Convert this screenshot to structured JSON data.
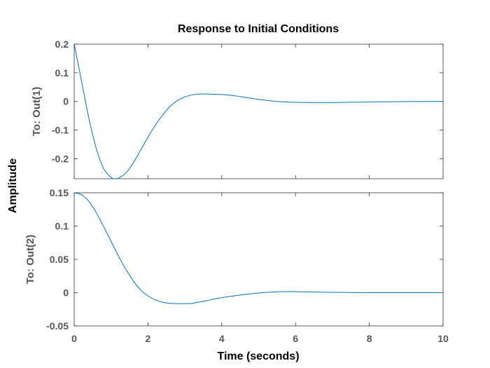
{
  "chart_data": {
    "type": "line",
    "title": "Response to Initial Conditions",
    "xlabel": "Time (seconds)",
    "ylabel": "Amplitude",
    "grid": false,
    "line_color": "#0072BD",
    "xlim": [
      0,
      10
    ],
    "xticks": [
      0,
      2,
      4,
      6,
      8,
      10
    ],
    "xtick_labels": [
      "0",
      "2",
      "4",
      "6",
      "8",
      "10"
    ],
    "subplots": [
      {
        "ylabel": "To: Out(1)",
        "ylim": [
          -0.27,
          0.2
        ],
        "yticks": [
          0.2,
          0.1,
          0,
          -0.1,
          -0.2
        ],
        "ytick_labels": [
          "0.2",
          "0.1",
          "0",
          "-0.1",
          "-0.2"
        ],
        "series": [
          {
            "x": [
              0,
              0.2,
              0.4,
              0.6,
              0.8,
              1.0,
              1.1,
              1.2,
              1.4,
              1.6,
              1.8,
              2.0,
              2.2,
              2.4,
              2.6,
              2.8,
              3.0,
              3.2,
              3.4,
              3.6,
              3.8,
              4.0,
              4.2,
              4.4,
              4.6,
              4.8,
              5.0,
              5.5,
              6.0,
              6.5,
              7.0,
              7.5,
              8.0,
              8.5,
              9.0,
              9.5,
              10.0
            ],
            "y": [
              0.2,
              0.07,
              -0.06,
              -0.165,
              -0.235,
              -0.265,
              -0.27,
              -0.268,
              -0.25,
              -0.215,
              -0.17,
              -0.125,
              -0.083,
              -0.047,
              -0.017,
              0.003,
              0.016,
              0.023,
              0.026,
              0.026,
              0.025,
              0.024,
              0.022,
              0.019,
              0.015,
              0.011,
              0.007,
              0.0,
              -0.003,
              -0.004,
              -0.004,
              -0.003,
              -0.002,
              -0.001,
              -0.0005,
              0.0,
              0.0
            ]
          }
        ]
      },
      {
        "ylabel": "To: Out(2)",
        "ylim": [
          -0.05,
          0.15
        ],
        "yticks": [
          0.15,
          0.1,
          0.05,
          0,
          -0.05
        ],
        "ytick_labels": [
          "0.15",
          "0.1",
          "0.05",
          "0",
          "-0.05"
        ],
        "series": [
          {
            "x": [
              0,
              0.2,
              0.4,
              0.6,
              0.8,
              1.0,
              1.2,
              1.4,
              1.6,
              1.8,
              2.0,
              2.2,
              2.4,
              2.6,
              2.8,
              3.0,
              3.2,
              3.4,
              3.6,
              3.8,
              4.0,
              4.5,
              5.0,
              5.5,
              6.0,
              6.5,
              7.0,
              7.5,
              8.0,
              9.0,
              10.0
            ],
            "y": [
              0.15,
              0.147,
              0.137,
              0.12,
              0.099,
              0.077,
              0.055,
              0.035,
              0.018,
              0.004,
              -0.005,
              -0.011,
              -0.0145,
              -0.016,
              -0.0165,
              -0.0165,
              -0.016,
              -0.014,
              -0.012,
              -0.0095,
              -0.0075,
              -0.0035,
              -0.0005,
              0.0013,
              0.0015,
              0.001,
              0.0005,
              0.0002,
              0.0,
              0.0,
              0.0
            ]
          }
        ]
      }
    ]
  }
}
